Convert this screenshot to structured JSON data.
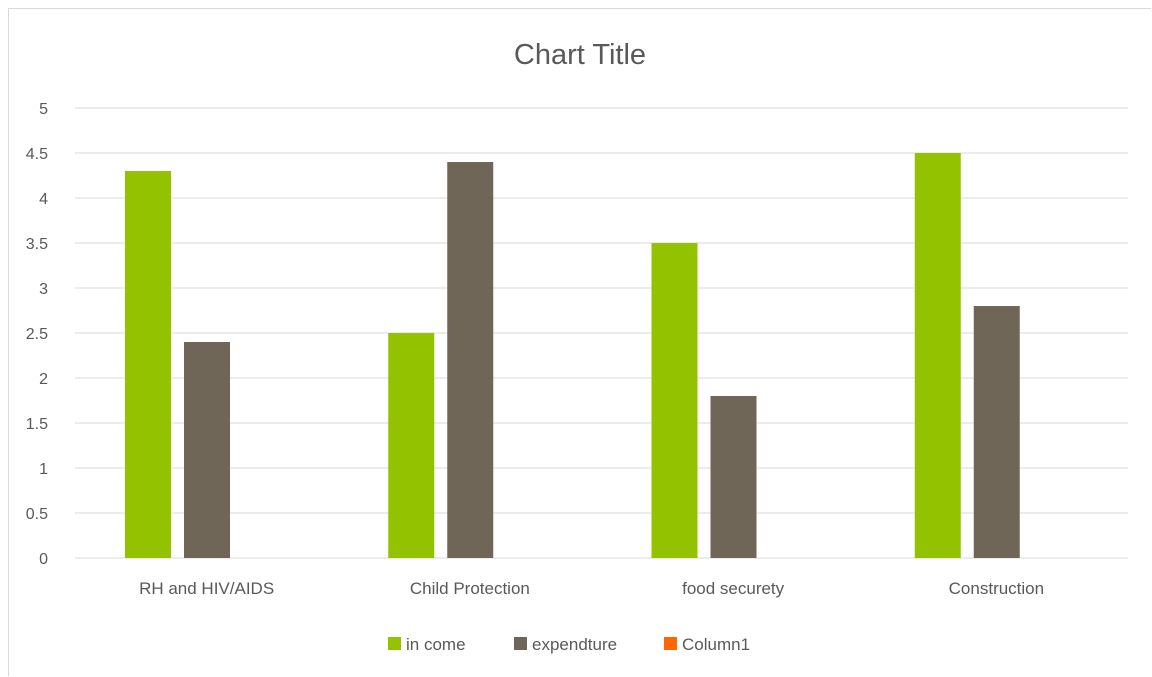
{
  "chart_data": {
    "type": "bar",
    "title": "Chart Title",
    "xlabel": "",
    "ylabel": "",
    "categories": [
      "RH and HIV/AIDS",
      "Child Protection",
      "food securety",
      "Construction"
    ],
    "series": [
      {
        "name": "in come",
        "color": "#92c200",
        "values": [
          4.3,
          2.5,
          3.5,
          4.5
        ]
      },
      {
        "name": "expendture",
        "color": "#706658",
        "values": [
          2.4,
          4.4,
          1.8,
          2.8
        ]
      },
      {
        "name": "Column1",
        "color": "#ff6600",
        "values": [
          0,
          0,
          0,
          0
        ]
      }
    ],
    "ylim": [
      0,
      5
    ],
    "yticks": [
      "0",
      "0.5",
      "1",
      "1.5",
      "2",
      "2.5",
      "3",
      "3.5",
      "4",
      "4.5",
      "5"
    ],
    "grid": true,
    "legend_position": "bottom"
  }
}
